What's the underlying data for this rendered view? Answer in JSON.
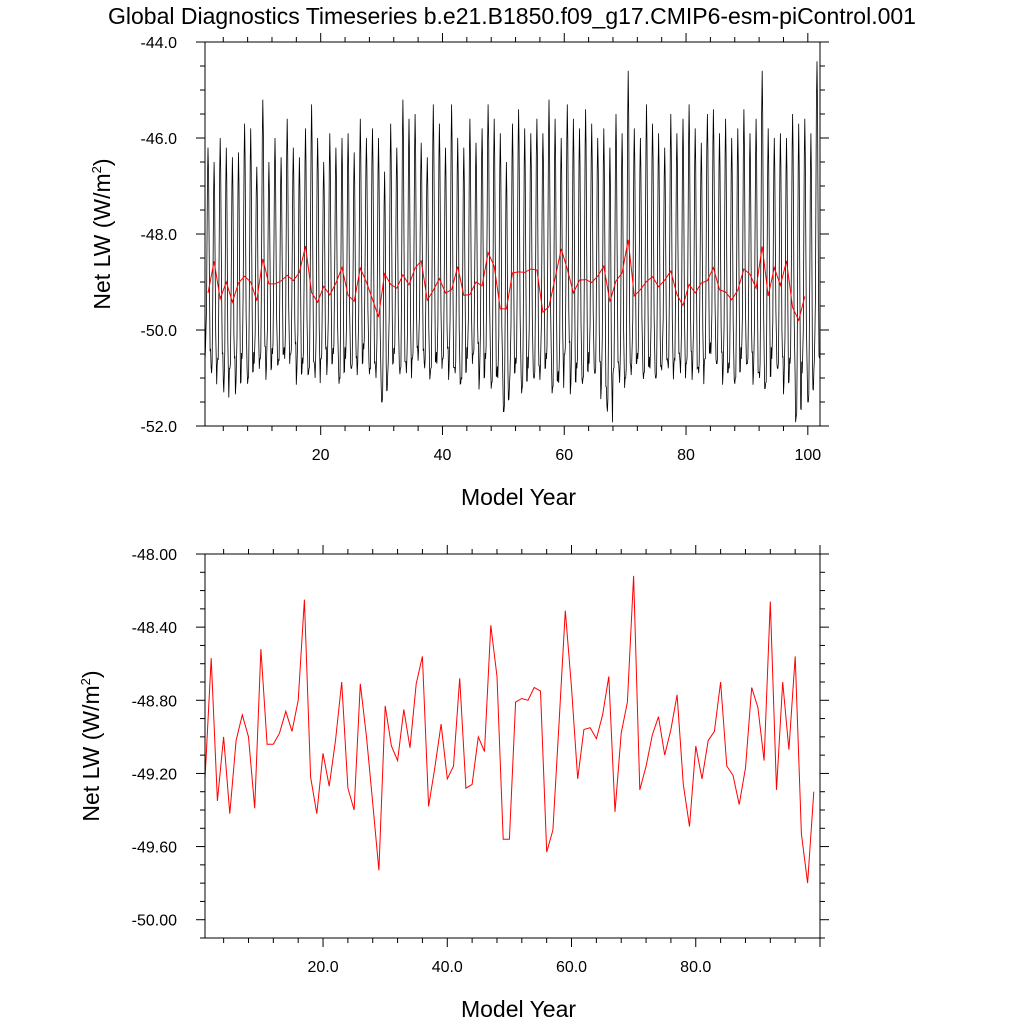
{
  "chart_data": [
    {
      "type": "line",
      "title": "Global Diagnostics Timeseries b.e21.B1850.f09_g17.CMIP6-esm-piControl.001",
      "xlabel": "Model Year",
      "ylabel_main": "Net LW (W/m",
      "ylabel_sup": "2",
      "ylabel_close": ")",
      "xlim": [
        1,
        102
      ],
      "ylim": [
        -52,
        -44
      ],
      "x_ticks": [
        20,
        40,
        60,
        80,
        100
      ],
      "x_tick_labels": [
        "20",
        "40",
        "60",
        "80",
        "100"
      ],
      "y_ticks": [
        -52,
        -50,
        -48,
        -46,
        -44
      ],
      "y_tick_labels": [
        "-52.0",
        "-50.0",
        "-48.0",
        "-46.0",
        "-44.0"
      ],
      "grid": false,
      "series": [
        {
          "color": "#000000",
          "kind": "monthly",
          "x_start": 1,
          "x_step": 0.0833333,
          "annual_peaks": [
            -46.2,
            -46.5,
            -46.0,
            -46.2,
            -46.4,
            -46.3,
            -45.7,
            -45.8,
            -46.6,
            -45.2,
            -46.5,
            -46.0,
            -46.4,
            -45.6,
            -46.2,
            -46.4,
            -45.8,
            -45.3,
            -46.0,
            -46.5,
            -45.9,
            -46.2,
            -46.0,
            -45.9,
            -46.3,
            -45.6,
            -46.0,
            -45.8,
            -46.0,
            -46.7,
            -45.7,
            -46.2,
            -45.2,
            -45.6,
            -45.5,
            -46.1,
            -46.4,
            -45.3,
            -45.7,
            -46.2,
            -45.3,
            -46.0,
            -46.2,
            -45.6,
            -46.1,
            -45.8,
            -45.3,
            -45.6,
            -45.9,
            -46.5,
            -45.7,
            -45.4,
            -45.8,
            -45.9,
            -45.6,
            -45.9,
            -45.2,
            -45.6,
            -46.0,
            -45.3,
            -45.6,
            -45.8,
            -45.4,
            -45.7,
            -46.0,
            -45.8,
            -46.2,
            -45.5,
            -45.9,
            -44.6,
            -45.8,
            -46.0,
            -45.3,
            -45.7,
            -45.9,
            -46.2,
            -45.5,
            -45.9,
            -45.6,
            -45.3,
            -45.8,
            -46.1,
            -45.5,
            -45.4,
            -45.9,
            -45.6,
            -46.0,
            -45.8,
            -45.4,
            -45.9,
            -45.6,
            -44.6,
            -45.8,
            -46.0,
            -45.9,
            -46.0,
            -45.5,
            -45.7,
            -45.6,
            -45.9,
            -44.4
          ],
          "annual_troughs": [
            -50.4,
            -50.9,
            -50.6,
            -51.3,
            -50.8,
            -51.1,
            -50.6,
            -51.0,
            -50.7,
            -50.6,
            -50.8,
            -50.5,
            -50.6,
            -50.6,
            -50.5,
            -50.9,
            -50.7,
            -50.8,
            -51.0,
            -50.6,
            -50.7,
            -50.5,
            -51.0,
            -50.6,
            -50.8,
            -50.7,
            -50.4,
            -50.8,
            -51.0,
            -51.5,
            -50.7,
            -50.5,
            -50.8,
            -50.9,
            -50.6,
            -50.4,
            -50.8,
            -50.8,
            -50.7,
            -50.6,
            -50.8,
            -50.9,
            -51.0,
            -50.6,
            -50.5,
            -51.0,
            -50.6,
            -51.1,
            -51.0,
            -51.7,
            -50.9,
            -50.7,
            -51.2,
            -50.8,
            -51.0,
            -50.8,
            -50.6,
            -51.2,
            -51.1,
            -50.5,
            -51.1,
            -50.8,
            -51.0,
            -50.7,
            -50.9,
            -51.2,
            -51.7,
            -50.8,
            -51.1,
            -51.0,
            -50.7,
            -50.6,
            -50.9,
            -50.8,
            -51.0,
            -50.6,
            -50.8,
            -50.6,
            -50.9,
            -50.7,
            -50.8,
            -50.9,
            -50.6,
            -50.5,
            -50.7,
            -50.9,
            -50.8,
            -51.0,
            -50.6,
            -50.7,
            -50.9,
            -51.0,
            -51.1,
            -50.6,
            -50.8,
            -51.1,
            -50.7,
            -51.8,
            -50.9,
            -51.5,
            -50.6
          ]
        },
        {
          "color": "#ff0000",
          "kind": "annual",
          "x_start": 1.5,
          "values": [
            -49.23,
            -48.57,
            -49.35,
            -49.0,
            -49.42,
            -49.02,
            -48.88,
            -49.0,
            -49.39,
            -48.52,
            -49.04,
            -49.04,
            -48.98,
            -48.86,
            -48.97,
            -48.8,
            -48.25,
            -49.22,
            -49.42,
            -49.09,
            -49.27,
            -49.02,
            -48.7,
            -49.28,
            -49.4,
            -48.71,
            -49.0,
            -49.36,
            -49.73,
            -48.83,
            -49.05,
            -49.13,
            -48.85,
            -49.06,
            -48.71,
            -48.56,
            -49.38,
            -49.17,
            -48.93,
            -49.23,
            -49.16,
            -48.68,
            -49.28,
            -49.26,
            -49.0,
            -49.08,
            -48.39,
            -48.67,
            -49.56,
            -49.56,
            -48.81,
            -48.79,
            -48.8,
            -48.73,
            -48.75,
            -49.63,
            -49.51,
            -48.92,
            -48.31,
            -48.73,
            -49.23,
            -48.96,
            -48.95,
            -49.01,
            -48.88,
            -48.67,
            -49.41,
            -48.98,
            -48.81,
            -48.12,
            -49.29,
            -49.16,
            -48.99,
            -48.89,
            -49.1,
            -48.96,
            -48.77,
            -49.26,
            -49.49,
            -49.05,
            -49.23,
            -49.02,
            -48.97,
            -48.7,
            -49.16,
            -49.21,
            -49.37,
            -49.17,
            -48.73,
            -48.84,
            -49.13,
            -48.26,
            -49.29,
            -48.7,
            -49.07,
            -48.56,
            -49.53,
            -49.8,
            -49.3
          ]
        }
      ]
    },
    {
      "type": "line",
      "xlabel": "Model Year",
      "ylabel_main": "Net LW (W/m",
      "ylabel_sup": "2",
      "ylabel_close": ")",
      "xlim": [
        1,
        100
      ],
      "ylim": [
        -50.1,
        -48.0
      ],
      "x_ticks": [
        20,
        40,
        60,
        80
      ],
      "x_tick_labels": [
        "20.0",
        "40.0",
        "60.0",
        "80.0"
      ],
      "y_ticks": [
        -50.0,
        -49.6,
        -49.2,
        -48.8,
        -48.4,
        -48.0
      ],
      "y_tick_labels": [
        "-50.00",
        "-49.60",
        "-49.20",
        "-48.80",
        "-48.40",
        "-48.00"
      ],
      "grid": false,
      "series": [
        {
          "color": "#ff0000",
          "x_start": 1,
          "values": [
            -49.23,
            -48.57,
            -49.35,
            -49.0,
            -49.42,
            -49.02,
            -48.88,
            -49.0,
            -49.39,
            -48.52,
            -49.04,
            -49.04,
            -48.98,
            -48.86,
            -48.97,
            -48.8,
            -48.25,
            -49.22,
            -49.42,
            -49.09,
            -49.27,
            -49.02,
            -48.7,
            -49.28,
            -49.4,
            -48.71,
            -49.0,
            -49.36,
            -49.73,
            -48.83,
            -49.05,
            -49.13,
            -48.85,
            -49.06,
            -48.71,
            -48.56,
            -49.38,
            -49.17,
            -48.93,
            -49.23,
            -49.16,
            -48.68,
            -49.28,
            -49.26,
            -49.0,
            -49.08,
            -48.39,
            -48.67,
            -49.56,
            -49.56,
            -48.81,
            -48.79,
            -48.8,
            -48.73,
            -48.75,
            -49.63,
            -49.51,
            -48.92,
            -48.31,
            -48.73,
            -49.23,
            -48.96,
            -48.95,
            -49.01,
            -48.88,
            -48.67,
            -49.41,
            -48.98,
            -48.81,
            -48.12,
            -49.29,
            -49.16,
            -48.99,
            -48.89,
            -49.1,
            -48.96,
            -48.77,
            -49.26,
            -49.49,
            -49.05,
            -49.23,
            -49.02,
            -48.97,
            -48.7,
            -49.16,
            -49.21,
            -49.37,
            -49.17,
            -48.73,
            -48.84,
            -49.13,
            -48.26,
            -49.29,
            -48.7,
            -49.07,
            -48.56,
            -49.53,
            -49.8,
            -49.3
          ]
        }
      ]
    }
  ]
}
